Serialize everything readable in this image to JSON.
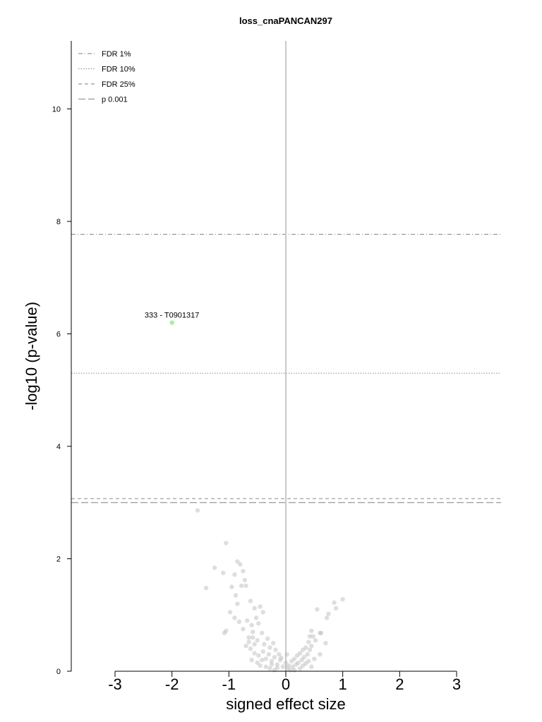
{
  "chart_data": {
    "type": "scatter",
    "title": "loss_cnaPANCAN297",
    "xlabel": "signed effect size",
    "ylabel": "-log10 (p-value)",
    "xlim": [
      -3.0,
      3.0
    ],
    "ylim": [
      0,
      11.2
    ],
    "x_ticks": [
      "-3",
      "-2",
      "-1",
      "0",
      "1",
      "2",
      "3"
    ],
    "y_ticks": [
      "0",
      "2",
      "4",
      "6",
      "8",
      "10"
    ],
    "grid": false,
    "legend_position": "top-left",
    "thresholds": [
      {
        "label": "FDR 1%",
        "y": 7.77,
        "style": "dashdot"
      },
      {
        "label": "FDR 10%",
        "y": 5.3,
        "style": "dotted"
      },
      {
        "label": "FDR 25%",
        "y": 3.07,
        "style": "dashed"
      },
      {
        "label": "p 0.001",
        "y": 3.0,
        "style": "longdash"
      }
    ],
    "highlighted_points": [
      {
        "label": "333 - T0901317",
        "x": -2.0,
        "y": 6.2,
        "color": "#a4f0a4"
      }
    ],
    "points": [
      [
        -1.55,
        2.86
      ],
      [
        -1.05,
        2.28
      ],
      [
        -1.4,
        1.48
      ],
      [
        -1.25,
        1.84
      ],
      [
        -1.1,
        1.75
      ],
      [
        -0.85,
        1.95
      ],
      [
        -0.8,
        1.9
      ],
      [
        -0.75,
        1.78
      ],
      [
        -0.72,
        1.62
      ],
      [
        -0.9,
        1.72
      ],
      [
        -0.7,
        1.52
      ],
      [
        -0.78,
        1.52
      ],
      [
        -0.95,
        1.5
      ],
      [
        -0.88,
        1.35
      ],
      [
        -0.85,
        1.2
      ],
      [
        -0.62,
        1.25
      ],
      [
        -0.55,
        1.12
      ],
      [
        -0.45,
        1.15
      ],
      [
        -0.98,
        1.05
      ],
      [
        -0.9,
        0.95
      ],
      [
        -0.68,
        0.9
      ],
      [
        -0.6,
        0.82
      ],
      [
        -0.52,
        0.95
      ],
      [
        -0.48,
        0.85
      ],
      [
        -0.4,
        1.05
      ],
      [
        -1.08,
        0.68
      ],
      [
        -1.05,
        0.72
      ],
      [
        -0.82,
        0.88
      ],
      [
        -0.75,
        0.75
      ],
      [
        -0.65,
        0.6
      ],
      [
        -0.58,
        0.7
      ],
      [
        -0.5,
        0.55
      ],
      [
        -0.42,
        0.68
      ],
      [
        -0.38,
        0.48
      ],
      [
        -0.32,
        0.58
      ],
      [
        -0.28,
        0.42
      ],
      [
        -0.22,
        0.5
      ],
      [
        -0.18,
        0.38
      ],
      [
        -0.12,
        0.3
      ],
      [
        -0.08,
        0.24
      ],
      [
        -0.7,
        0.45
      ],
      [
        -0.62,
        0.4
      ],
      [
        -0.55,
        0.32
      ],
      [
        -0.48,
        0.28
      ],
      [
        -0.4,
        0.35
      ],
      [
        -0.35,
        0.22
      ],
      [
        -0.3,
        0.3
      ],
      [
        -0.25,
        0.18
      ],
      [
        -0.2,
        0.25
      ],
      [
        -0.15,
        0.12
      ],
      [
        -0.1,
        0.2
      ],
      [
        -0.05,
        0.08
      ],
      [
        0.0,
        0.15
      ],
      [
        0.03,
        0.05
      ],
      [
        0.05,
        0.1
      ],
      [
        0.08,
        0.02
      ],
      [
        0.1,
        0.18
      ],
      [
        0.12,
        0.08
      ],
      [
        0.15,
        0.22
      ],
      [
        0.18,
        0.12
      ],
      [
        0.2,
        0.28
      ],
      [
        0.22,
        0.15
      ],
      [
        0.25,
        0.32
      ],
      [
        0.28,
        0.2
      ],
      [
        0.3,
        0.38
      ],
      [
        0.32,
        0.25
      ],
      [
        0.35,
        0.42
      ],
      [
        0.38,
        0.3
      ],
      [
        0.4,
        0.52
      ],
      [
        0.42,
        0.38
      ],
      [
        0.45,
        0.45
      ],
      [
        0.48,
        0.62
      ],
      [
        0.45,
        0.72
      ],
      [
        0.42,
        0.62
      ],
      [
        0.52,
        0.55
      ],
      [
        0.55,
        1.1
      ],
      [
        0.6,
        0.68
      ],
      [
        0.62,
        0.68
      ],
      [
        0.72,
        0.95
      ],
      [
        0.75,
        1.02
      ],
      [
        0.7,
        0.5
      ],
      [
        0.85,
        1.22
      ],
      [
        0.88,
        1.12
      ],
      [
        1.0,
        1.28
      ],
      [
        -0.6,
        0.2
      ],
      [
        -0.5,
        0.15
      ],
      [
        -0.45,
        0.1
      ],
      [
        -0.35,
        0.08
      ],
      [
        -0.28,
        0.05
      ],
      [
        -0.2,
        0.02
      ],
      [
        -0.15,
        0.06
      ],
      [
        0.25,
        0.05
      ],
      [
        0.3,
        0.1
      ],
      [
        0.35,
        0.14
      ],
      [
        0.5,
        0.22
      ],
      [
        -0.42,
        0.2
      ],
      [
        -0.25,
        0.12
      ],
      [
        0.15,
        0.02
      ],
      [
        -0.65,
        0.52
      ],
      [
        -0.55,
        0.48
      ],
      [
        -0.58,
        0.6
      ],
      [
        0.4,
        0.18
      ],
      [
        0.45,
        0.08
      ],
      [
        0.6,
        0.3
      ],
      [
        0.02,
        0.3
      ]
    ]
  }
}
